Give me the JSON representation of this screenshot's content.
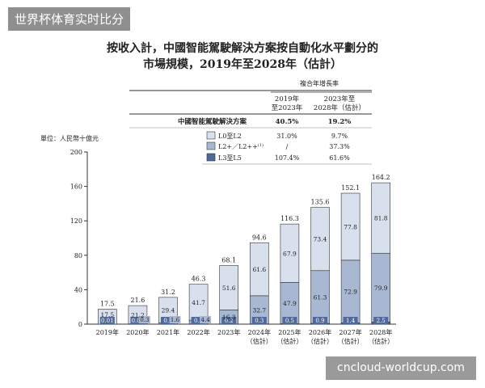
{
  "watermark_top": "世界杯体育实时比分",
  "watermark_bottom": "cncloud-worldcup.com",
  "title_line1": "按收入計，中國智能駕駛解決方案按自動化水平劃分的",
  "title_line2": "市場規模，2019年至2028年（估計）",
  "table": {
    "header_group": "複合年增長率",
    "col1_header": [
      "2019年",
      "至2023年"
    ],
    "col2_header": [
      "2023年至",
      "2028年（估計）"
    ],
    "rows": [
      {
        "label": "中國智能駕駛解決方案",
        "v1": "40.5%",
        "v2": "19.2%"
      },
      {
        "label": "L0至L2",
        "v1": "31.0%",
        "v2": "9.7%",
        "color": "#d7e0ec"
      },
      {
        "label": "L2+／L2++",
        "sup": "(1)",
        "v1": "/",
        "v2": "37.3%",
        "color": "#a9b8d2"
      },
      {
        "label": "L3至L5",
        "v1": "107.4%",
        "v2": "61.6%",
        "color": "#4f6a9a"
      }
    ]
  },
  "colors": {
    "l0": "#d7e0ec",
    "l2plus": "#a9b8d2",
    "l3": "#4f6a9a"
  },
  "chart_data": {
    "type": "bar",
    "stacked": true,
    "unit_label": "單位：人民幣十億元",
    "categories": [
      [
        "2019年"
      ],
      [
        "2020年"
      ],
      [
        "2021年"
      ],
      [
        "2022年"
      ],
      [
        "2023年"
      ],
      [
        "2024年",
        "（估計）"
      ],
      [
        "2025年",
        "（估計）"
      ],
      [
        "2026年",
        "（估計）"
      ],
      [
        "2027年",
        "（估計）"
      ],
      [
        "2028年",
        "（估計）"
      ]
    ],
    "totals": [
      "17.5",
      "21.6",
      "31.2",
      "46.3",
      "68.1",
      "94.6",
      "116.3",
      "135.6",
      "152.1",
      "164.2"
    ],
    "series": [
      {
        "name": "L3至L5",
        "values": [
          0.01,
          0.02,
          0.1,
          0.2,
          0.2,
          0.3,
          0.5,
          0.9,
          1.4,
          2.5
        ],
        "labels": [
          "0.01",
          "0.02",
          "0.1",
          "0.2",
          "0.2",
          "0.3",
          "0.5",
          "0.9",
          "1.4",
          "2.5"
        ]
      },
      {
        "name": "L2+／L2++",
        "values": [
          0,
          0.3,
          1.6,
          4.4,
          16.3,
          32.7,
          47.9,
          61.3,
          72.9,
          79.9
        ],
        "labels": [
          "",
          "0.3",
          "1.6",
          "4.4",
          "16.3",
          "32.7",
          "47.9",
          "61.3",
          "72.9",
          "79.9"
        ]
      },
      {
        "name": "L0至L2",
        "values": [
          17.5,
          21.2,
          29.4,
          41.7,
          51.6,
          61.6,
          67.9,
          73.4,
          77.8,
          81.8
        ],
        "labels": [
          "17.5",
          "21.2",
          "29.4",
          "41.7",
          "51.6",
          "61.6",
          "67.9",
          "73.4",
          "77.8",
          "81.8"
        ]
      }
    ],
    "yticks": [
      "0",
      "40",
      "80",
      "120",
      "160",
      "200"
    ],
    "ylim": [
      0,
      200
    ]
  }
}
